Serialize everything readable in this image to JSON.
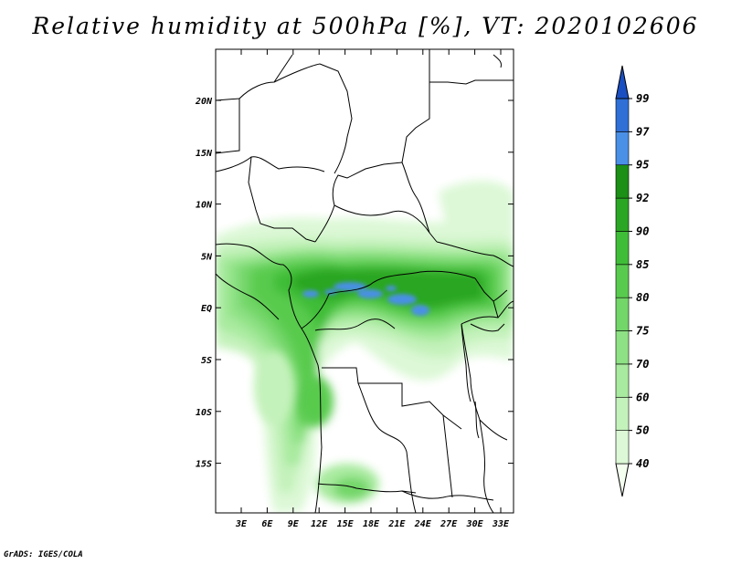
{
  "title": "Relative humidity at 500hPa [%], VT: 2020102606",
  "credit": "GrADS: IGES/COLA",
  "map": {
    "lat_ticks": [
      "20N",
      "15N",
      "10N",
      "5N",
      "EQ",
      "5S",
      "10S",
      "15S"
    ],
    "lon_ticks": [
      "3E",
      "6E",
      "9E",
      "12E",
      "15E",
      "18E",
      "21E",
      "24E",
      "27E",
      "30E",
      "33E"
    ],
    "extent_lon": [
      0.5,
      35
    ],
    "extent_lat": [
      -20,
      24.5
    ]
  },
  "colorbar": {
    "labels": [
      "40",
      "50",
      "60",
      "70",
      "75",
      "80",
      "85",
      "90",
      "92",
      "95",
      "97",
      "99"
    ],
    "colors": [
      "#f4fff0",
      "#dcf8d6",
      "#c4f2bb",
      "#a8ea9f",
      "#8ee184",
      "#72d668",
      "#58cb4e",
      "#40bd38",
      "#2ba624",
      "#1c8f16",
      "#4a90e6",
      "#2f6fd6",
      "#1a4fc2"
    ]
  },
  "colors": {
    "humid_band": "#3fb834",
    "very_humid": "#2a9a22",
    "saturated": "#4a90e6"
  }
}
